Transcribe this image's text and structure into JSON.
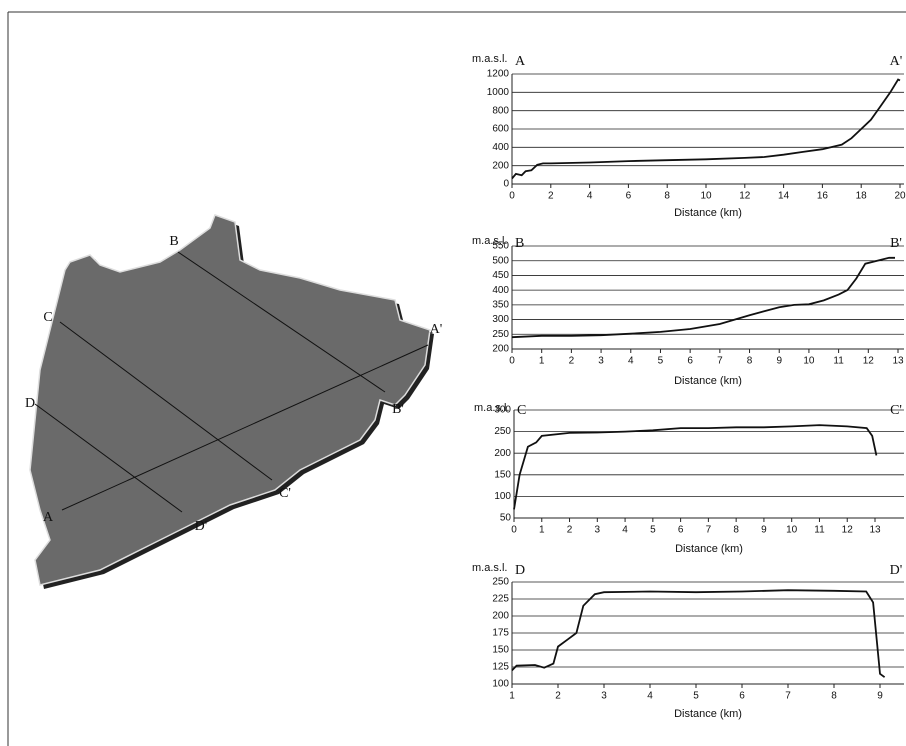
{
  "map": {
    "labels": [
      "A",
      "A'",
      "B",
      "B'",
      "C",
      "C'",
      "D",
      "D'"
    ]
  },
  "chart_data": [
    {
      "type": "line",
      "y_label": "m.a.s.l.",
      "start_label": "A",
      "end_label": "A'",
      "x_label": "Distance (km)",
      "color": "#111111",
      "grid": true,
      "xlim": [
        0,
        20
      ],
      "xticks": [
        0,
        2,
        4,
        6,
        8,
        10,
        12,
        14,
        16,
        18,
        20
      ],
      "ylim": [
        0,
        1200
      ],
      "yticks": [
        0,
        200,
        400,
        600,
        800,
        1000,
        1200
      ],
      "x": [
        0,
        0.2,
        0.5,
        0.7,
        1,
        1.3,
        1.6,
        2,
        4,
        6,
        8,
        10,
        12,
        13,
        14,
        15,
        16,
        17,
        17.5,
        18,
        18.5,
        19,
        19.5,
        19.9,
        20
      ],
      "values": [
        60,
        110,
        95,
        140,
        150,
        210,
        225,
        225,
        235,
        250,
        260,
        270,
        285,
        295,
        320,
        350,
        380,
        430,
        500,
        600,
        700,
        850,
        1000,
        1140,
        1130
      ]
    },
    {
      "type": "line",
      "y_label": "m.a.s.l.",
      "start_label": "B",
      "end_label": "B'",
      "x_label": "Distance (km)",
      "color": "#111111",
      "grid": true,
      "xlim": [
        0,
        13
      ],
      "xticks": [
        0,
        1,
        2,
        3,
        4,
        5,
        6,
        7,
        8,
        9,
        10,
        11,
        12,
        13
      ],
      "ylim": [
        200,
        550
      ],
      "yticks": [
        200,
        250,
        300,
        350,
        400,
        450,
        500,
        550
      ],
      "x": [
        0,
        1,
        2,
        3,
        4,
        5,
        6,
        7,
        8,
        9,
        9.5,
        10,
        10.5,
        11,
        11.3,
        11.6,
        11.9,
        12.3,
        12.7,
        12.9
      ],
      "values": [
        240,
        245,
        245,
        247,
        252,
        258,
        268,
        285,
        315,
        342,
        350,
        352,
        365,
        385,
        400,
        440,
        490,
        500,
        510,
        510
      ]
    },
    {
      "type": "line",
      "y_label": "m.a.s.l.",
      "start_label": "C",
      "end_label": "C'",
      "x_label": "Distance (km)",
      "color": "#111111",
      "grid": true,
      "xlim": [
        0,
        13
      ],
      "xticks": [
        0,
        1,
        2,
        3,
        4,
        5,
        6,
        7,
        8,
        9,
        10,
        11,
        12,
        13
      ],
      "ylim": [
        50,
        300
      ],
      "yticks": [
        50,
        100,
        150,
        200,
        250,
        300
      ],
      "x": [
        0,
        0.2,
        0.5,
        0.8,
        1,
        2,
        3,
        4,
        5,
        6,
        7,
        8,
        9,
        10,
        11,
        12,
        12.7,
        12.9,
        13.05
      ],
      "values": [
        70,
        150,
        215,
        225,
        240,
        247,
        248,
        250,
        253,
        258,
        258,
        260,
        260,
        262,
        265,
        262,
        258,
        240,
        195
      ]
    },
    {
      "type": "line",
      "y_label": "m.a.s.l.",
      "start_label": "D",
      "end_label": "D'",
      "x_label": "Distance (km)",
      "color": "#111111",
      "grid": true,
      "xlim": [
        1,
        9.5
      ],
      "xticks": [
        1,
        2,
        3,
        4,
        5,
        6,
        7,
        8,
        9
      ],
      "ylim": [
        100,
        250
      ],
      "yticks": [
        100,
        125,
        150,
        175,
        200,
        225,
        250
      ],
      "x": [
        1,
        1.1,
        1.5,
        1.7,
        1.9,
        2.0,
        2.2,
        2.4,
        2.55,
        2.8,
        3,
        4,
        5,
        6,
        7,
        8,
        8.7,
        8.85,
        9.0,
        9.1
      ],
      "values": [
        120,
        127,
        128,
        124,
        130,
        155,
        165,
        175,
        215,
        232,
        235,
        236,
        235,
        236,
        238,
        237,
        236,
        220,
        115,
        110
      ]
    }
  ]
}
